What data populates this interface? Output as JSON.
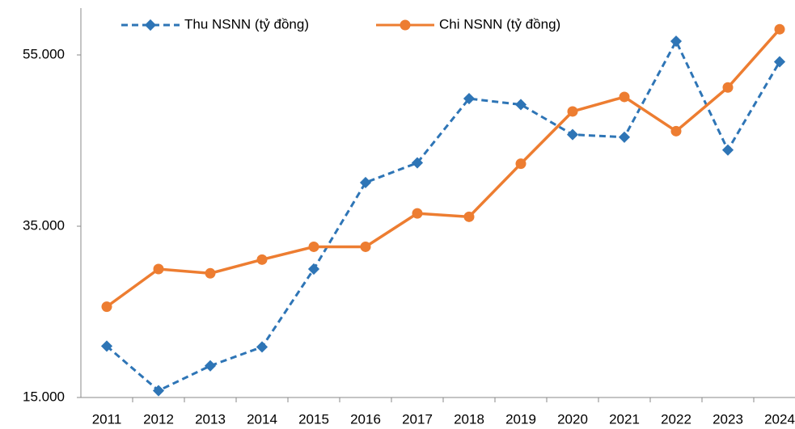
{
  "chart_data": {
    "type": "line",
    "categories": [
      "2011",
      "2012",
      "2013",
      "2014",
      "2015",
      "2016",
      "2017",
      "2018",
      "2019",
      "2020",
      "2021",
      "2022",
      "2023",
      "2024"
    ],
    "series": [
      {
        "name": "Thu NSNN (tỷ đồng)",
        "color": "#2e75b6",
        "values": [
          21000,
          15800,
          18700,
          20900,
          30000,
          40100,
          42400,
          49900,
          49200,
          45700,
          45400,
          56600,
          43900,
          54200
        ]
      },
      {
        "name": "Chi NSNN (tỷ đồng)",
        "color": "#ed7d31",
        "values": [
          25600,
          30000,
          29500,
          31100,
          32600,
          32600,
          36500,
          36100,
          42300,
          48400,
          50100,
          46100,
          51200,
          58000
        ]
      }
    ],
    "ylim": [
      15000,
      60000
    ],
    "yticks": [
      {
        "value": 15000,
        "label": "15.000"
      },
      {
        "value": 35000,
        "label": "35.000"
      },
      {
        "value": 55000,
        "label": "55.000"
      }
    ],
    "grid": false,
    "legend": "top"
  }
}
